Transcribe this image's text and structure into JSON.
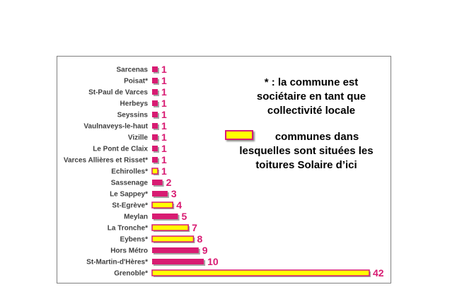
{
  "chart_data": {
    "type": "bar",
    "orientation": "horizontal",
    "categories": [
      "Sarcenas",
      "Poisat*",
      "St-Paul de Varces",
      "Herbeys",
      "Seyssins",
      "Vaulnaveys-le-haut",
      "Vizille",
      "Le Pont de Claix",
      "Varces Allières et Risset*",
      "Echirolles*",
      "Sassenage",
      "Le Sappey*",
      "St-Egrève*",
      "Meylan",
      "La Tronche*",
      "Eybens*",
      "Hors Métro",
      "St-Martin-d'Hères*",
      "Grenoble*"
    ],
    "values": [
      1,
      1,
      1,
      1,
      1,
      1,
      1,
      1,
      1,
      1,
      2,
      3,
      4,
      5,
      7,
      8,
      9,
      10,
      42
    ],
    "value_labels": [
      "1",
      "1",
      "1",
      "1",
      "1",
      "1",
      "1",
      "1",
      "1",
      "1",
      "2",
      "3",
      "4",
      "5",
      "7",
      "8",
      "9",
      "10",
      "42"
    ],
    "highlighted": [
      false,
      false,
      false,
      false,
      false,
      false,
      false,
      false,
      false,
      true,
      false,
      false,
      true,
      false,
      true,
      true,
      false,
      false,
      true
    ],
    "xlim": [
      0,
      42
    ],
    "grid": false,
    "colors": {
      "default": "#d81b72",
      "highlighted_fill": "#ffff00",
      "highlighted_border": "#d81b72",
      "label": "#d81b72"
    }
  },
  "notes": {
    "asterisk_note": "* : la commune est sociétaire en tant que collectivité locale",
    "legend_text": "communes dans lesquelles sont situées les toitures Solaire d’ici"
  }
}
